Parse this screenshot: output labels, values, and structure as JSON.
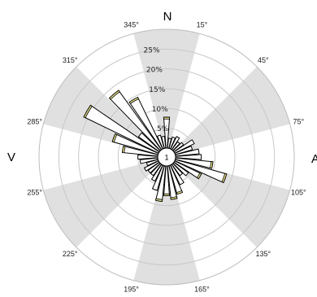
{
  "chart_data": {
    "type": "rose",
    "title": "",
    "cardinals": {
      "north": "N",
      "east": "A",
      "west": "V"
    },
    "direction_labels": [
      "15°",
      "45°",
      "75°",
      "105°",
      "135°",
      "165°",
      "195°",
      "225°",
      "255°",
      "285°",
      "315°",
      "345°"
    ],
    "direction_angles": [
      15,
      45,
      75,
      105,
      135,
      165,
      195,
      225,
      255,
      285,
      315,
      345
    ],
    "radial_ticks": [
      "5%",
      "10%",
      "15%",
      "20%",
      "25%"
    ],
    "radial_values": [
      5,
      10,
      15,
      20,
      25
    ],
    "r_max": 30,
    "calm_label": "1",
    "sector_width_deg": 10,
    "sectors": [
      {
        "dir": 0,
        "value": 7.8
      },
      {
        "dir": 10,
        "value": 2.5
      },
      {
        "dir": 20,
        "value": 3.0
      },
      {
        "dir": 30,
        "value": 3.5
      },
      {
        "dir": 40,
        "value": 2.5
      },
      {
        "dir": 50,
        "value": 3.0
      },
      {
        "dir": 60,
        "value": 5.5
      },
      {
        "dir": 70,
        "value": 4.5
      },
      {
        "dir": 80,
        "value": 6.0
      },
      {
        "dir": 90,
        "value": 6.5
      },
      {
        "dir": 100,
        "value": 9.5
      },
      {
        "dir": 110,
        "value": 13.5
      },
      {
        "dir": 120,
        "value": 7.5
      },
      {
        "dir": 130,
        "value": 4.5
      },
      {
        "dir": 140,
        "value": 3.5
      },
      {
        "dir": 150,
        "value": 5.5
      },
      {
        "dir": 160,
        "value": 7.5
      },
      {
        "dir": 170,
        "value": 8.5
      },
      {
        "dir": 180,
        "value": 7.5
      },
      {
        "dir": 190,
        "value": 9.0
      },
      {
        "dir": 200,
        "value": 6.5
      },
      {
        "dir": 210,
        "value": 4.5
      },
      {
        "dir": 220,
        "value": 3.5
      },
      {
        "dir": 230,
        "value": 3.5
      },
      {
        "dir": 240,
        "value": 4.0
      },
      {
        "dir": 250,
        "value": 3.0
      },
      {
        "dir": 260,
        "value": 4.5
      },
      {
        "dir": 270,
        "value": 5.0
      },
      {
        "dir": 280,
        "value": 9.0
      },
      {
        "dir": 290,
        "value": 12.0
      },
      {
        "dir": 300,
        "value": 21.0
      },
      {
        "dir": 310,
        "value": 6.5
      },
      {
        "dir": 320,
        "value": 18.5
      },
      {
        "dir": 330,
        "value": 14.5
      },
      {
        "dir": 340,
        "value": 3.5
      },
      {
        "dir": 350,
        "value": 3.0
      }
    ],
    "colors": {
      "shade": "#e0e0e0",
      "ring": "#c8c8c8",
      "bar_fill": "#ffffff",
      "bar_stroke": "#000000",
      "bar_tip": "#e8e089"
    }
  }
}
